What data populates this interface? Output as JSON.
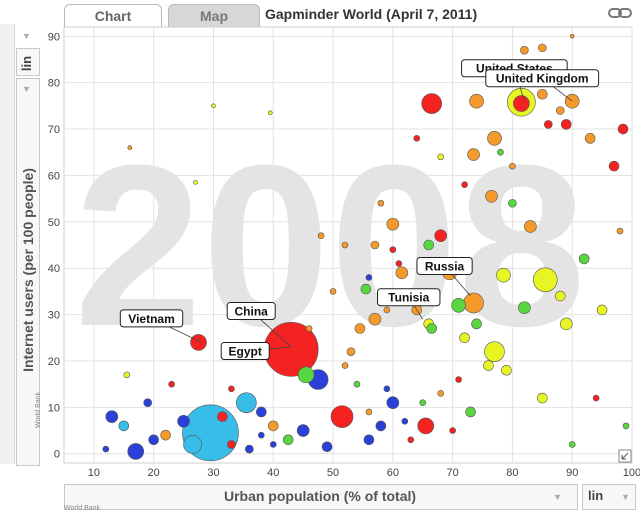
{
  "header": {
    "tabs": [
      {
        "label": "Chart"
      },
      {
        "label": "Map"
      }
    ],
    "title": "Gapminder World (April 7, 2011)"
  },
  "yaxis_control": {
    "scale": "lin"
  },
  "xaxis_control": {
    "scale": "lin"
  },
  "source_label": "World Bank",
  "colors": {
    "red": "#f52222",
    "orange": "#f49a2a",
    "yellow": "#e8f524",
    "green": "#57d640",
    "cyan": "#37bde8",
    "blue": "#2b3fd9",
    "grid": "#e2e2e2",
    "year": "#e4e4e4"
  },
  "chart_data": {
    "type": "scatter",
    "title": "Gapminder World (April 7, 2011)",
    "year_label": "2008",
    "xlabel": "Urban population (% of total)",
    "ylabel": "Internet users (per 100 people)",
    "xlim": [
      5,
      100
    ],
    "ylim": [
      -2,
      92
    ],
    "xticks": [
      10,
      20,
      30,
      40,
      50,
      60,
      70,
      80,
      90,
      100
    ],
    "yticks": [
      0,
      10,
      20,
      30,
      40,
      50,
      60,
      70,
      80,
      90
    ],
    "labels": [
      {
        "text": "United States",
        "x": 82,
        "y": 76
      },
      {
        "text": "United Kingdom",
        "x": 90,
        "y": 76
      },
      {
        "text": "Russia",
        "x": 73,
        "y": 34
      },
      {
        "text": "Tunisia",
        "x": 65,
        "y": 29
      },
      {
        "text": "Vietnam",
        "x": 28,
        "y": 24
      },
      {
        "text": "China",
        "x": 43,
        "y": 23
      },
      {
        "text": "Egypt",
        "x": 43,
        "y": 23
      }
    ],
    "points": [
      {
        "x": 29.5,
        "y": 4.5,
        "r": 28,
        "c": "cyan"
      },
      {
        "x": 43,
        "y": 22.5,
        "r": 27,
        "c": "red"
      },
      {
        "x": 81.5,
        "y": 75.8,
        "r": 14,
        "c": "yellow"
      },
      {
        "x": 85.5,
        "y": 37.5,
        "r": 12,
        "c": "yellow"
      },
      {
        "x": 73.5,
        "y": 32.5,
        "r": 10,
        "c": "orange"
      },
      {
        "x": 66.5,
        "y": 75.5,
        "r": 10,
        "c": "red"
      },
      {
        "x": 81.5,
        "y": 75.5,
        "r": 8,
        "c": "red"
      },
      {
        "x": 51.5,
        "y": 8,
        "r": 11,
        "c": "red"
      },
      {
        "x": 77,
        "y": 22,
        "r": 10,
        "c": "yellow"
      },
      {
        "x": 35.5,
        "y": 11,
        "r": 10,
        "c": "cyan"
      },
      {
        "x": 26.5,
        "y": 2,
        "r": 9,
        "c": "cyan"
      },
      {
        "x": 47.5,
        "y": 16,
        "r": 10,
        "c": "blue"
      },
      {
        "x": 17,
        "y": 0.5,
        "r": 8,
        "c": "blue"
      },
      {
        "x": 27.5,
        "y": 24,
        "r": 8,
        "c": "red"
      },
      {
        "x": 45.5,
        "y": 17,
        "r": 8,
        "c": "green"
      },
      {
        "x": 65.5,
        "y": 6,
        "r": 8,
        "c": "red"
      },
      {
        "x": 74,
        "y": 76,
        "r": 7,
        "c": "orange"
      },
      {
        "x": 90,
        "y": 76,
        "r": 7,
        "c": "orange"
      },
      {
        "x": 77,
        "y": 68,
        "r": 7,
        "c": "orange"
      },
      {
        "x": 69.5,
        "y": 39,
        "r": 7,
        "c": "orange"
      },
      {
        "x": 71,
        "y": 32,
        "r": 7,
        "c": "green"
      },
      {
        "x": 83,
        "y": 49,
        "r": 6,
        "c": "orange"
      },
      {
        "x": 78.5,
        "y": 38.5,
        "r": 7,
        "c": "yellow"
      },
      {
        "x": 89,
        "y": 28,
        "r": 6,
        "c": "yellow"
      },
      {
        "x": 82,
        "y": 31.5,
        "r": 6,
        "c": "green"
      },
      {
        "x": 60,
        "y": 49.5,
        "r": 6,
        "c": "orange"
      },
      {
        "x": 61.5,
        "y": 39,
        "r": 6,
        "c": "orange"
      },
      {
        "x": 68,
        "y": 47,
        "r": 6,
        "c": "red"
      },
      {
        "x": 73.5,
        "y": 64.5,
        "r": 6,
        "c": "orange"
      },
      {
        "x": 76.5,
        "y": 55.5,
        "r": 6,
        "c": "orange"
      },
      {
        "x": 85,
        "y": 77.5,
        "r": 5,
        "c": "orange"
      },
      {
        "x": 93,
        "y": 68,
        "r": 5,
        "c": "orange"
      },
      {
        "x": 97,
        "y": 62,
        "r": 5,
        "c": "red"
      },
      {
        "x": 98.5,
        "y": 70,
        "r": 5,
        "c": "red"
      },
      {
        "x": 57,
        "y": 29,
        "r": 6,
        "c": "orange"
      },
      {
        "x": 54.5,
        "y": 27,
        "r": 5,
        "c": "orange"
      },
      {
        "x": 55.5,
        "y": 35.5,
        "r": 5,
        "c": "green"
      },
      {
        "x": 62.5,
        "y": 33,
        "r": 5,
        "c": "yellow"
      },
      {
        "x": 64,
        "y": 31,
        "r": 5,
        "c": "orange"
      },
      {
        "x": 66,
        "y": 28,
        "r": 5,
        "c": "yellow"
      },
      {
        "x": 66.5,
        "y": 27,
        "r": 5,
        "c": "green"
      },
      {
        "x": 72,
        "y": 25,
        "r": 5,
        "c": "yellow"
      },
      {
        "x": 74,
        "y": 28,
        "r": 5,
        "c": "green"
      },
      {
        "x": 76,
        "y": 19,
        "r": 5,
        "c": "yellow"
      },
      {
        "x": 79,
        "y": 18,
        "r": 5,
        "c": "yellow"
      },
      {
        "x": 88,
        "y": 34,
        "r": 5,
        "c": "yellow"
      },
      {
        "x": 92,
        "y": 42,
        "r": 5,
        "c": "green"
      },
      {
        "x": 95,
        "y": 31,
        "r": 5,
        "c": "yellow"
      },
      {
        "x": 85,
        "y": 12,
        "r": 5,
        "c": "yellow"
      },
      {
        "x": 73,
        "y": 9,
        "r": 5,
        "c": "green"
      },
      {
        "x": 60,
        "y": 11,
        "r": 6,
        "c": "blue"
      },
      {
        "x": 56,
        "y": 3,
        "r": 5,
        "c": "blue"
      },
      {
        "x": 58,
        "y": 6,
        "r": 5,
        "c": "blue"
      },
      {
        "x": 45,
        "y": 5,
        "r": 6,
        "c": "blue"
      },
      {
        "x": 25,
        "y": 7,
        "r": 6,
        "c": "blue"
      },
      {
        "x": 20,
        "y": 3,
        "r": 5,
        "c": "blue"
      },
      {
        "x": 22,
        "y": 4,
        "r": 5,
        "c": "orange"
      },
      {
        "x": 13,
        "y": 8,
        "r": 6,
        "c": "blue"
      },
      {
        "x": 15,
        "y": 6,
        "r": 5,
        "c": "cyan"
      },
      {
        "x": 31.5,
        "y": 8,
        "r": 5,
        "c": "red"
      },
      {
        "x": 38,
        "y": 9,
        "r": 5,
        "c": "blue"
      },
      {
        "x": 40,
        "y": 6,
        "r": 5,
        "c": "orange"
      },
      {
        "x": 42.5,
        "y": 3,
        "r": 5,
        "c": "green"
      },
      {
        "x": 49,
        "y": 1.5,
        "r": 5,
        "c": "blue"
      },
      {
        "x": 53,
        "y": 22,
        "r": 4,
        "c": "orange"
      },
      {
        "x": 66,
        "y": 45,
        "r": 5,
        "c": "green"
      },
      {
        "x": 80,
        "y": 54,
        "r": 4,
        "c": "green"
      },
      {
        "x": 86,
        "y": 71,
        "r": 4,
        "c": "red"
      },
      {
        "x": 89,
        "y": 71,
        "r": 5,
        "c": "red"
      },
      {
        "x": 82,
        "y": 87,
        "r": 4,
        "c": "orange"
      },
      {
        "x": 85,
        "y": 87.5,
        "r": 4,
        "c": "orange"
      },
      {
        "x": 88,
        "y": 74,
        "r": 4,
        "c": "orange"
      },
      {
        "x": 64,
        "y": 68,
        "r": 3,
        "c": "red"
      },
      {
        "x": 68,
        "y": 64,
        "r": 3,
        "c": "yellow"
      },
      {
        "x": 72,
        "y": 58,
        "r": 3,
        "c": "red"
      },
      {
        "x": 78,
        "y": 65,
        "r": 3,
        "c": "green"
      },
      {
        "x": 80,
        "y": 62,
        "r": 3,
        "c": "orange"
      },
      {
        "x": 60,
        "y": 44,
        "r": 3,
        "c": "red"
      },
      {
        "x": 48,
        "y": 47,
        "r": 3,
        "c": "orange"
      },
      {
        "x": 52,
        "y": 45,
        "r": 3,
        "c": "orange"
      },
      {
        "x": 57,
        "y": 45,
        "r": 4,
        "c": "orange"
      },
      {
        "x": 58,
        "y": 54,
        "r": 3,
        "c": "orange"
      },
      {
        "x": 38,
        "y": 30,
        "r": 3,
        "c": "orange"
      },
      {
        "x": 46,
        "y": 27,
        "r": 3,
        "c": "orange"
      },
      {
        "x": 50,
        "y": 35,
        "r": 3,
        "c": "orange"
      },
      {
        "x": 56,
        "y": 38,
        "r": 3,
        "c": "blue"
      },
      {
        "x": 61,
        "y": 41,
        "r": 3,
        "c": "red"
      },
      {
        "x": 59,
        "y": 31,
        "r": 3,
        "c": "orange"
      },
      {
        "x": 52,
        "y": 19,
        "r": 3,
        "c": "orange"
      },
      {
        "x": 54,
        "y": 15,
        "r": 3,
        "c": "green"
      },
      {
        "x": 56,
        "y": 9,
        "r": 3,
        "c": "orange"
      },
      {
        "x": 59,
        "y": 14,
        "r": 3,
        "c": "blue"
      },
      {
        "x": 62,
        "y": 7,
        "r": 3,
        "c": "blue"
      },
      {
        "x": 63,
        "y": 3,
        "r": 3,
        "c": "red"
      },
      {
        "x": 65,
        "y": 11,
        "r": 3,
        "c": "green"
      },
      {
        "x": 68,
        "y": 13,
        "r": 3,
        "c": "orange"
      },
      {
        "x": 70,
        "y": 5,
        "r": 3,
        "c": "red"
      },
      {
        "x": 71,
        "y": 16,
        "r": 3,
        "c": "red"
      },
      {
        "x": 33,
        "y": 2,
        "r": 4,
        "c": "red"
      },
      {
        "x": 36,
        "y": 1,
        "r": 4,
        "c": "blue"
      },
      {
        "x": 38,
        "y": 4,
        "r": 3,
        "c": "blue"
      },
      {
        "x": 40,
        "y": 2,
        "r": 3,
        "c": "blue"
      },
      {
        "x": 33,
        "y": 14,
        "r": 3,
        "c": "red"
      },
      {
        "x": 23,
        "y": 15,
        "r": 3,
        "c": "red"
      },
      {
        "x": 19,
        "y": 11,
        "r": 4,
        "c": "blue"
      },
      {
        "x": 15.5,
        "y": 17,
        "r": 3,
        "c": "yellow"
      },
      {
        "x": 12,
        "y": 1,
        "r": 3,
        "c": "blue"
      },
      {
        "x": 27,
        "y": 58.5,
        "r": 2,
        "c": "yellow"
      },
      {
        "x": 30,
        "y": 75,
        "r": 2,
        "c": "yellow"
      },
      {
        "x": 39.5,
        "y": 73.5,
        "r": 2,
        "c": "yellow"
      },
      {
        "x": 16,
        "y": 66,
        "r": 2,
        "c": "orange"
      },
      {
        "x": 90,
        "y": 90,
        "r": 2,
        "c": "orange"
      },
      {
        "x": 98,
        "y": 48,
        "r": 3,
        "c": "orange"
      },
      {
        "x": 99,
        "y": 6,
        "r": 3,
        "c": "green"
      },
      {
        "x": 94,
        "y": 12,
        "r": 3,
        "c": "red"
      },
      {
        "x": 90,
        "y": 2,
        "r": 3,
        "c": "green"
      }
    ]
  }
}
